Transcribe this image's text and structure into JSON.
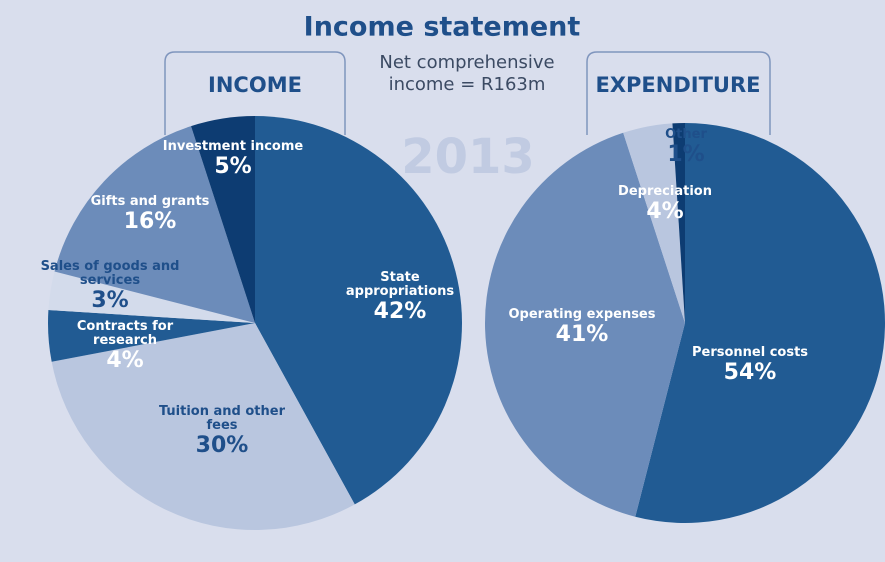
{
  "title": "Income statement",
  "subtitle": "Net comprehensive income = R163m",
  "year": "2013",
  "chart_data": [
    {
      "type": "pie",
      "title": "INCOME",
      "categories": [
        "State appropriations",
        "Tuition and other fees",
        "Contracts for research",
        "Sales of goods and services",
        "Gifts and grants",
        "Investment income"
      ],
      "values": [
        42,
        30,
        4,
        3,
        16,
        5
      ],
      "value_labels": [
        "42%",
        "30%",
        "4%",
        "3%",
        "16%",
        "5%"
      ],
      "colors": [
        "#215b93",
        "#b9c6df",
        "#215b93",
        "#d3dbeb",
        "#6c8cba",
        "#0d3c72"
      ]
    },
    {
      "type": "pie",
      "title": "EXPENDITURE",
      "categories": [
        "Personnel costs",
        "Operating expenses",
        "Depreciation",
        "Other"
      ],
      "values": [
        54,
        41,
        4,
        1
      ],
      "value_labels": [
        "54%",
        "41%",
        "4%",
        "1%"
      ],
      "colors": [
        "#215b93",
        "#6c8cba",
        "#b9c6df",
        "#0d3c72"
      ]
    }
  ]
}
